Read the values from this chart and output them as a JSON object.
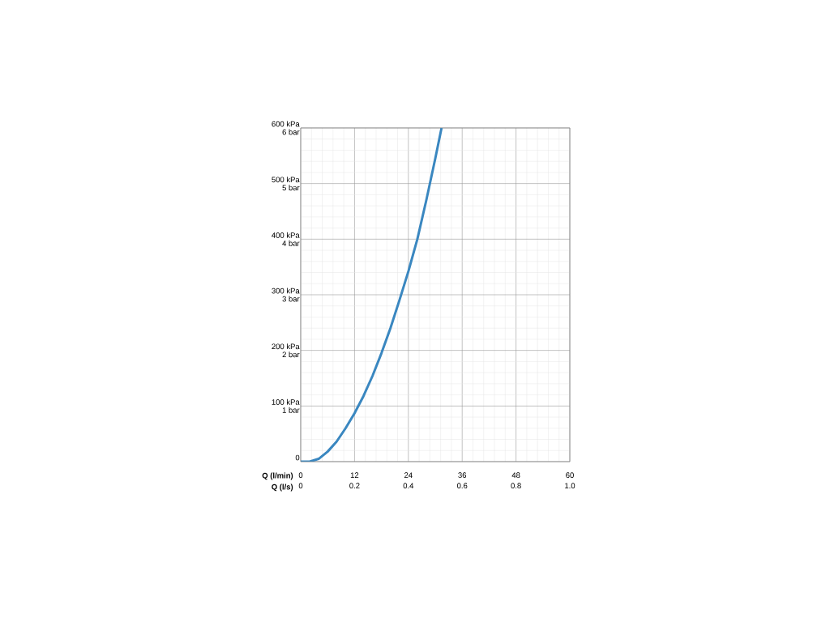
{
  "chart_data": {
    "type": "line",
    "xlabel": "Q (l/min)",
    "x2label": "Q (l/s)",
    "x": [
      0,
      2,
      4,
      6,
      8,
      10,
      12,
      14,
      16,
      18,
      20,
      22,
      24,
      26,
      28,
      30,
      31.4
    ],
    "values": [
      0,
      0,
      5,
      18,
      36,
      60,
      87,
      118,
      154,
      195,
      240,
      290,
      342,
      400,
      470,
      545,
      600
    ],
    "color": "#3a87c0",
    "xlim": [
      0,
      60
    ],
    "xticks": [
      0,
      12,
      24,
      36,
      48,
      60
    ],
    "x2lim": [
      0,
      1
    ],
    "x2ticks": [
      0,
      0.2,
      0.4,
      0.6,
      0.8,
      {
        "value": 1,
        "label": "1.0"
      }
    ],
    "ylim": [
      0,
      600
    ],
    "yticks": [
      0,
      {
        "value": 100,
        "label": "100 kPa"
      },
      {
        "value": 200,
        "label": "200 kPa"
      },
      {
        "value": 300,
        "label": "300 kPa"
      },
      {
        "value": 400,
        "label": "400 kPa"
      },
      {
        "value": 500,
        "label": "500 kPa"
      },
      {
        "value": 600,
        "label": "600 kPa"
      }
    ],
    "y2lim": [
      0,
      6
    ],
    "y2ticks": [
      {
        "value": 1,
        "label": "1 bar"
      },
      {
        "value": 2,
        "label": "2 bar"
      },
      {
        "value": 3,
        "label": "3 bar"
      },
      {
        "value": 4,
        "label": "4 bar"
      },
      {
        "value": 5,
        "label": "5 bar"
      },
      {
        "value": 6,
        "label": "6 bar"
      }
    ],
    "grid": true
  }
}
